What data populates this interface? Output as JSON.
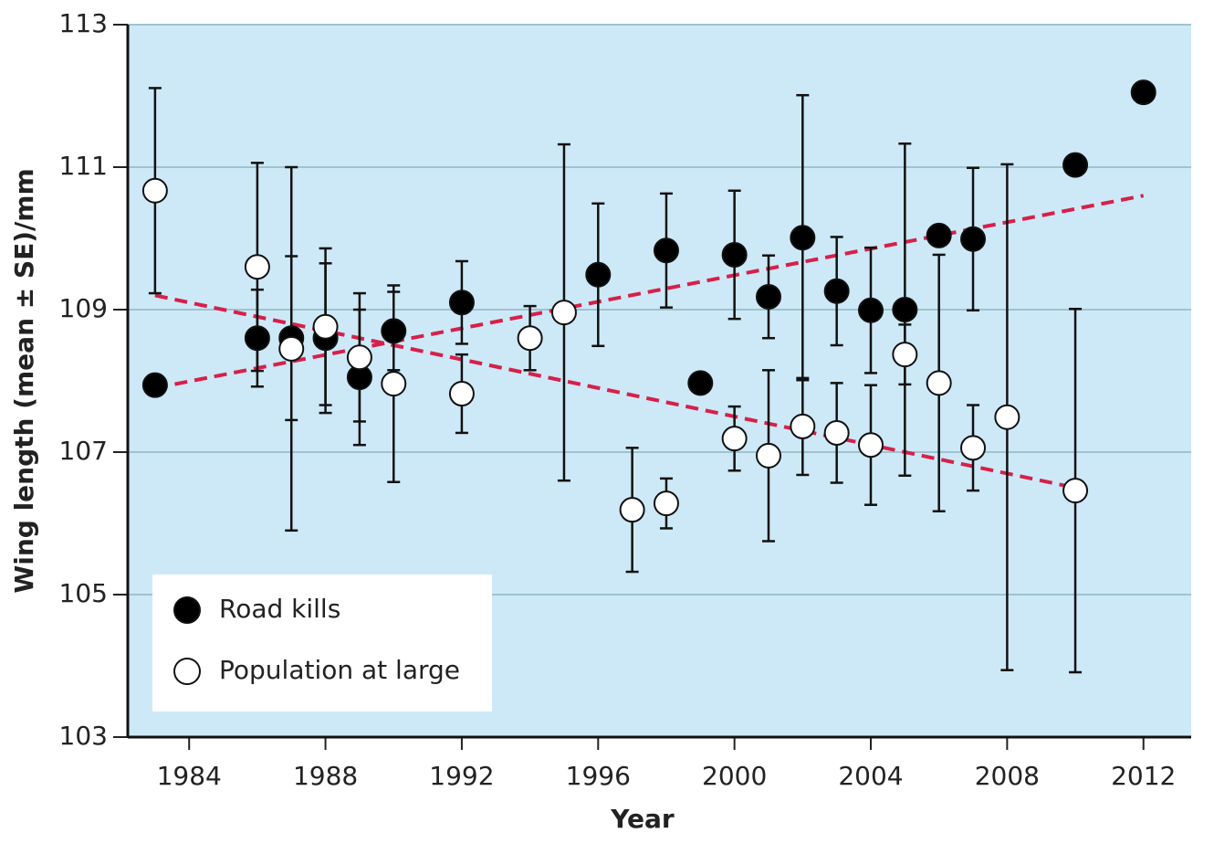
{
  "chart_data": {
    "type": "scatter",
    "xlabel": "Year",
    "ylabel": "Wing length (mean ± SE)/mm",
    "xlim": [
      1982.2,
      2013.4
    ],
    "ylim": [
      103,
      113
    ],
    "xticks": [
      1984,
      1988,
      1992,
      1996,
      2000,
      2004,
      2008,
      2012
    ],
    "yticks": [
      103,
      105,
      107,
      109,
      111,
      113
    ],
    "grid": true,
    "legend": "lower left",
    "series": [
      {
        "name": "Road kills",
        "color": "#000000",
        "x": [
          1983,
          1986,
          1987,
          1988,
          1989,
          1990,
          1992,
          1996,
          1998,
          1999,
          2000,
          2001,
          2002,
          2003,
          2004,
          2005,
          2006,
          2007,
          2010,
          2012
        ],
        "values": [
          107.94,
          108.6,
          108.6,
          108.6,
          108.05,
          108.7,
          109.1,
          109.49,
          109.83,
          107.97,
          109.77,
          109.18,
          110.01,
          109.26,
          108.99,
          109.0,
          110.04,
          109.99,
          111.03,
          112.05
        ],
        "errors": [
          null,
          0.68,
          1.15,
          1.05,
          0.95,
          0.55,
          0.58,
          1.0,
          0.8,
          null,
          0.9,
          0.58,
          2.0,
          0.76,
          0.88,
          2.33,
          null,
          1.0,
          null,
          null
        ]
      },
      {
        "name": "Population at large",
        "color": "#ffffff",
        "x": [
          1983,
          1986,
          1987,
          1988,
          1989,
          1990,
          1992,
          1994,
          1995,
          1997,
          1998,
          2000,
          2001,
          2002,
          2003,
          2004,
          2005,
          2006,
          2007,
          2008,
          2010
        ],
        "values": [
          110.67,
          109.6,
          108.45,
          108.76,
          108.33,
          107.96,
          107.82,
          108.6,
          108.96,
          106.19,
          106.28,
          107.19,
          106.95,
          107.36,
          107.27,
          107.1,
          108.37,
          107.97,
          107.06,
          107.49,
          106.46
        ],
        "errors": [
          1.44,
          1.46,
          2.55,
          1.1,
          0.9,
          1.38,
          0.55,
          0.45,
          2.36,
          0.87,
          0.35,
          0.45,
          1.2,
          0.68,
          0.7,
          0.84,
          0.42,
          1.8,
          0.6,
          3.55,
          2.55
        ]
      }
    ],
    "trendlines": [
      {
        "color": "#d6204a",
        "x": [
          1983,
          2012
        ],
        "values": [
          107.9,
          110.6
        ]
      },
      {
        "color": "#d6204a",
        "x": [
          1983,
          2010
        ],
        "values": [
          109.2,
          106.5
        ]
      }
    ]
  }
}
